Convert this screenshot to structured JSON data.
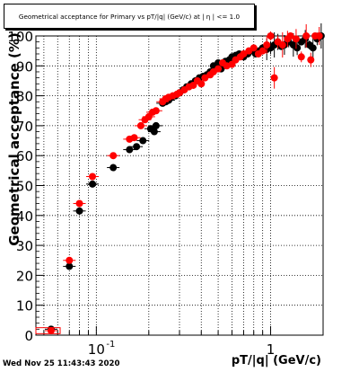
{
  "chart_data": {
    "type": "scatter",
    "title": "Geometrical acceptance for Primary vs pT/|q| (GeV/c) at |  η  | <= 1.0",
    "xlabel": "pT/|q| (GeV/c)",
    "ylabel": "Geometrical acceptance (%)",
    "xscale": "log",
    "xlim": [
      0.045,
      2.0
    ],
    "ylim": [
      0,
      100
    ],
    "y_ticks": [
      0,
      10,
      20,
      30,
      40,
      50,
      60,
      70,
      80,
      90,
      100
    ],
    "x_tick_labels": [
      {
        "value": 0.1,
        "label": "10",
        "exp": "-1"
      },
      {
        "value": 1,
        "label": "1",
        "exp": ""
      }
    ],
    "grid": true,
    "series": [
      {
        "color": "#000000",
        "x": [
          0.055,
          0.07,
          0.08,
          0.095,
          0.125,
          0.155,
          0.17,
          0.185,
          0.205,
          0.215,
          0.22,
          0.24,
          0.25,
          0.26,
          0.27,
          0.285,
          0.3,
          0.315,
          0.33,
          0.35,
          0.37,
          0.39,
          0.41,
          0.43,
          0.45,
          0.47,
          0.5,
          0.52,
          0.55,
          0.58,
          0.6,
          0.63,
          0.66,
          0.7,
          0.74,
          0.78,
          0.82,
          0.86,
          0.9,
          0.95,
          1.0,
          1.05,
          1.1,
          1.15,
          1.2,
          1.27,
          1.35,
          1.42,
          1.5,
          1.58,
          1.67,
          1.75,
          1.85,
          1.95
        ],
        "y": [
          2,
          23,
          41.5,
          50.5,
          56,
          62,
          63,
          65,
          69,
          68,
          70,
          77.5,
          78,
          78.5,
          79.5,
          80,
          81,
          82,
          83,
          84,
          85,
          86,
          86.5,
          87,
          88,
          90,
          91,
          89,
          91.5,
          92,
          93,
          93.5,
          94,
          93,
          94,
          95,
          94,
          95,
          96,
          95.5,
          96,
          97,
          98,
          96.5,
          97,
          98,
          97,
          96,
          98,
          99,
          97,
          96,
          99,
          100
        ]
      },
      {
        "color": "#ff0000",
        "x": [
          0.055,
          0.07,
          0.08,
          0.095,
          0.125,
          0.155,
          0.165,
          0.18,
          0.19,
          0.2,
          0.21,
          0.22,
          0.24,
          0.25,
          0.26,
          0.275,
          0.29,
          0.3,
          0.32,
          0.34,
          0.36,
          0.38,
          0.4,
          0.42,
          0.45,
          0.47,
          0.5,
          0.53,
          0.56,
          0.6,
          0.63,
          0.67,
          0.7,
          0.75,
          0.8,
          0.85,
          0.9,
          0.95,
          1.0,
          1.05,
          1.1,
          1.17,
          1.25,
          1.3,
          1.4,
          1.5,
          1.6,
          1.7,
          1.8,
          1.9
        ],
        "y": [
          1.5,
          25,
          44,
          53,
          60,
          65.5,
          66,
          70,
          72,
          73,
          74.5,
          75,
          78,
          79,
          79.5,
          80,
          80.5,
          81,
          82,
          83,
          83.5,
          85,
          84,
          86,
          87,
          88,
          89,
          91,
          90,
          90.5,
          92,
          93,
          94,
          95,
          96,
          94,
          95,
          97,
          100,
          86,
          98,
          97,
          99,
          100,
          99,
          93,
          100,
          92,
          100,
          100
        ]
      }
    ]
  },
  "timestamp": "Wed Nov 25 11:43:43 2020"
}
